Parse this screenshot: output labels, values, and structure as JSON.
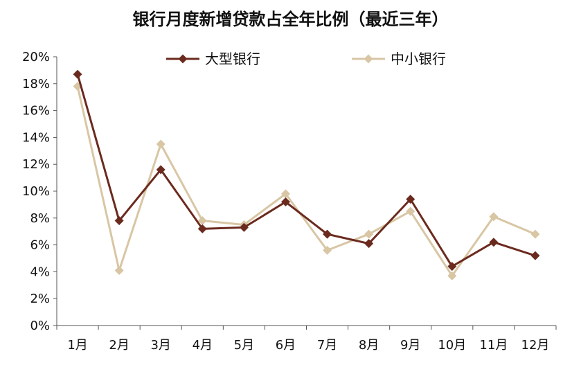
{
  "chart_data": {
    "type": "line",
    "title": "银行月度新增贷款占全年比例（最近三年）",
    "xlabel": "",
    "ylabel": "",
    "categories": [
      "1月",
      "2月",
      "3月",
      "4月",
      "5月",
      "6月",
      "7月",
      "8月",
      "9月",
      "10月",
      "11月",
      "12月"
    ],
    "ylim": [
      0,
      0.2
    ],
    "yticks": [
      "0%",
      "2%",
      "4%",
      "6%",
      "8%",
      "10%",
      "12%",
      "14%",
      "16%",
      "18%",
      "20%"
    ],
    "grid": false,
    "legend_position": "top",
    "series": [
      {
        "name": "大型银行",
        "color": "#6B2A1E",
        "marker": "diamond",
        "values": [
          0.187,
          0.078,
          0.116,
          0.072,
          0.073,
          0.092,
          0.068,
          0.061,
          0.094,
          0.044,
          0.062,
          0.052
        ]
      },
      {
        "name": "中小银行",
        "color": "#D8C6A4",
        "marker": "diamond",
        "values": [
          0.178,
          0.041,
          0.135,
          0.078,
          0.075,
          0.098,
          0.056,
          0.068,
          0.085,
          0.037,
          0.081,
          0.068
        ]
      }
    ]
  }
}
